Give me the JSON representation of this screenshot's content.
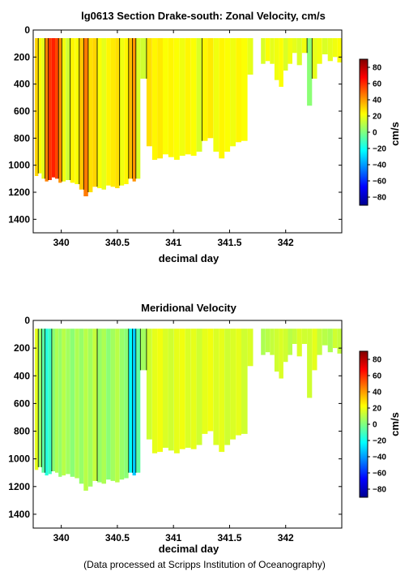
{
  "figure_title": "lg0613 Section Drake-south: Zonal Velocity, cm/s",
  "credit": "(Data processed at Scripps Institution of Oceanography)",
  "colors": {
    "colormap": [
      "#00008f",
      "#0000ff",
      "#0080ff",
      "#00ffff",
      "#80ff80",
      "#ffff00",
      "#ff8000",
      "#ff0000",
      "#800000"
    ],
    "contour": "#000000",
    "frame": "#000000"
  },
  "chart_data": [
    {
      "type": "heatmap",
      "title": "lg0613 Section Drake-south: Zonal Velocity, cm/s",
      "xlabel": "decimal day",
      "ylabel": "",
      "xlim": [
        339.75,
        342.5
      ],
      "ylim": [
        1500,
        0
      ],
      "xticks": [
        340,
        340.5,
        341,
        341.5,
        342
      ],
      "xtick_labels": [
        "340",
        "340.5",
        "341",
        "341.5",
        "342"
      ],
      "yticks": [
        0,
        200,
        400,
        600,
        800,
        1000,
        1200,
        1400
      ],
      "ytick_labels": [
        "0",
        "200",
        "400",
        "600",
        "800",
        "1000",
        "1200",
        "1400"
      ],
      "colorbar": {
        "label": "cm/s",
        "range": [
          -90,
          90
        ],
        "ticks": [
          80,
          60,
          40,
          20,
          0,
          -20,
          -40,
          -60,
          -80
        ],
        "tick_labels": [
          "80",
          "60",
          "40",
          "20",
          "0",
          "−20",
          "−40",
          "−60",
          "−80"
        ]
      },
      "columns": [
        {
          "x": 339.78,
          "depth": 1080,
          "v": 30
        },
        {
          "x": 339.81,
          "depth": 1060,
          "v": 22
        },
        {
          "x": 339.84,
          "depth": 1100,
          "v": 18
        },
        {
          "x": 339.87,
          "depth": 1120,
          "v": 45
        },
        {
          "x": 339.9,
          "depth": 1110,
          "v": 58
        },
        {
          "x": 339.93,
          "depth": 1090,
          "v": 62
        },
        {
          "x": 339.96,
          "depth": 1100,
          "v": 55
        },
        {
          "x": 339.99,
          "depth": 1130,
          "v": 42
        },
        {
          "x": 340.02,
          "depth": 1120,
          "v": 20
        },
        {
          "x": 340.06,
          "depth": 1110,
          "v": 14
        },
        {
          "x": 340.1,
          "depth": 1130,
          "v": 24
        },
        {
          "x": 340.14,
          "depth": 1140,
          "v": 22
        },
        {
          "x": 340.18,
          "depth": 1180,
          "v": 32
        },
        {
          "x": 340.22,
          "depth": 1230,
          "v": 46
        },
        {
          "x": 340.26,
          "depth": 1200,
          "v": 28
        },
        {
          "x": 340.3,
          "depth": 1160,
          "v": 30
        },
        {
          "x": 340.34,
          "depth": 1170,
          "v": 22
        },
        {
          "x": 340.38,
          "depth": 1180,
          "v": 18
        },
        {
          "x": 340.42,
          "depth": 1150,
          "v": 24
        },
        {
          "x": 340.46,
          "depth": 1160,
          "v": 26
        },
        {
          "x": 340.5,
          "depth": 1170,
          "v": 28
        },
        {
          "x": 340.54,
          "depth": 1150,
          "v": 20
        },
        {
          "x": 340.58,
          "depth": 1140,
          "v": 24
        },
        {
          "x": 340.62,
          "depth": 1100,
          "v": 34
        },
        {
          "x": 340.65,
          "depth": 1120,
          "v": 42
        },
        {
          "x": 340.68,
          "depth": 1100,
          "v": 16
        },
        {
          "x": 340.73,
          "depth": 360,
          "v": 14
        },
        {
          "x": 340.79,
          "depth": 860,
          "v": 28
        },
        {
          "x": 340.83,
          "depth": 960,
          "v": 24
        },
        {
          "x": 340.88,
          "depth": 950,
          "v": 26
        },
        {
          "x": 340.93,
          "depth": 920,
          "v": 22
        },
        {
          "x": 340.98,
          "depth": 940,
          "v": 24
        },
        {
          "x": 341.03,
          "depth": 960,
          "v": 22
        },
        {
          "x": 341.08,
          "depth": 930,
          "v": 20
        },
        {
          "x": 341.13,
          "depth": 920,
          "v": 24
        },
        {
          "x": 341.18,
          "depth": 930,
          "v": 22
        },
        {
          "x": 341.23,
          "depth": 900,
          "v": 16
        },
        {
          "x": 341.28,
          "depth": 820,
          "v": 24
        },
        {
          "x": 341.33,
          "depth": 800,
          "v": 26
        },
        {
          "x": 341.38,
          "depth": 900,
          "v": 20
        },
        {
          "x": 341.43,
          "depth": 950,
          "v": 24
        },
        {
          "x": 341.48,
          "depth": 900,
          "v": 22
        },
        {
          "x": 341.53,
          "depth": 860,
          "v": 20
        },
        {
          "x": 341.58,
          "depth": 830,
          "v": 24
        },
        {
          "x": 341.63,
          "depth": 820,
          "v": 22
        },
        {
          "x": 341.69,
          "depth": 330,
          "v": 18
        },
        {
          "x": 341.8,
          "depth": 250,
          "v": 16
        },
        {
          "x": 341.84,
          "depth": 230,
          "v": 22
        },
        {
          "x": 341.88,
          "depth": 250,
          "v": 18
        },
        {
          "x": 341.92,
          "depth": 370,
          "v": 20
        },
        {
          "x": 341.96,
          "depth": 420,
          "v": 22
        },
        {
          "x": 342.0,
          "depth": 300,
          "v": 16
        },
        {
          "x": 342.04,
          "depth": 250,
          "v": 20
        },
        {
          "x": 342.08,
          "depth": 170,
          "v": 18
        },
        {
          "x": 342.12,
          "depth": 260,
          "v": 16
        },
        {
          "x": 342.17,
          "depth": 170,
          "v": 20
        },
        {
          "x": 342.21,
          "depth": 560,
          "v": 2
        },
        {
          "x": 342.26,
          "depth": 360,
          "v": 18
        },
        {
          "x": 342.3,
          "depth": 250,
          "v": 20
        },
        {
          "x": 342.35,
          "depth": 180,
          "v": 16
        },
        {
          "x": 342.4,
          "depth": 230,
          "v": 18
        },
        {
          "x": 342.44,
          "depth": 200,
          "v": 20
        },
        {
          "x": 342.48,
          "depth": 240,
          "v": 22
        }
      ]
    },
    {
      "type": "heatmap",
      "title": "Meridional Velocity",
      "xlabel": "decimal day",
      "ylabel": "",
      "xlim": [
        339.75,
        342.5
      ],
      "ylim": [
        1500,
        0
      ],
      "xticks": [
        340,
        340.5,
        341,
        341.5,
        342
      ],
      "xtick_labels": [
        "340",
        "340.5",
        "341",
        "341.5",
        "342"
      ],
      "yticks": [
        0,
        200,
        400,
        600,
        800,
        1000,
        1200,
        1400
      ],
      "ytick_labels": [
        "0",
        "200",
        "400",
        "600",
        "800",
        "1000",
        "1200",
        "1400"
      ],
      "colorbar": {
        "label": "cm/s",
        "range": [
          -90,
          90
        ],
        "ticks": [
          80,
          60,
          40,
          20,
          0,
          -20,
          -40,
          -60,
          -80
        ],
        "tick_labels": [
          "80",
          "60",
          "40",
          "20",
          "0",
          "−20",
          "−40",
          "−60",
          "−80"
        ]
      },
      "columns": [
        {
          "x": 339.78,
          "depth": 1080,
          "v": 18
        },
        {
          "x": 339.81,
          "depth": 1060,
          "v": 4
        },
        {
          "x": 339.84,
          "depth": 1100,
          "v": -6
        },
        {
          "x": 339.87,
          "depth": 1120,
          "v": -16
        },
        {
          "x": 339.9,
          "depth": 1110,
          "v": -12
        },
        {
          "x": 339.93,
          "depth": 1090,
          "v": 2
        },
        {
          "x": 339.96,
          "depth": 1100,
          "v": 8
        },
        {
          "x": 339.99,
          "depth": 1130,
          "v": 4
        },
        {
          "x": 340.02,
          "depth": 1120,
          "v": 10
        },
        {
          "x": 340.06,
          "depth": 1110,
          "v": 6
        },
        {
          "x": 340.1,
          "depth": 1130,
          "v": 2
        },
        {
          "x": 340.14,
          "depth": 1140,
          "v": 8
        },
        {
          "x": 340.18,
          "depth": 1180,
          "v": 4
        },
        {
          "x": 340.22,
          "depth": 1230,
          "v": 10
        },
        {
          "x": 340.26,
          "depth": 1200,
          "v": 6
        },
        {
          "x": 340.3,
          "depth": 1160,
          "v": 12
        },
        {
          "x": 340.34,
          "depth": 1170,
          "v": 4
        },
        {
          "x": 340.38,
          "depth": 1180,
          "v": 8
        },
        {
          "x": 340.42,
          "depth": 1150,
          "v": 2
        },
        {
          "x": 340.46,
          "depth": 1160,
          "v": 6
        },
        {
          "x": 340.5,
          "depth": 1170,
          "v": 10
        },
        {
          "x": 340.54,
          "depth": 1150,
          "v": 4
        },
        {
          "x": 340.58,
          "depth": 1140,
          "v": 2
        },
        {
          "x": 340.62,
          "depth": 1100,
          "v": -22
        },
        {
          "x": 340.65,
          "depth": 1120,
          "v": -32
        },
        {
          "x": 340.68,
          "depth": 1100,
          "v": -6
        },
        {
          "x": 340.73,
          "depth": 360,
          "v": 6
        },
        {
          "x": 340.79,
          "depth": 860,
          "v": 14
        },
        {
          "x": 340.83,
          "depth": 960,
          "v": 18
        },
        {
          "x": 340.88,
          "depth": 950,
          "v": 20
        },
        {
          "x": 340.93,
          "depth": 920,
          "v": 16
        },
        {
          "x": 340.98,
          "depth": 940,
          "v": 14
        },
        {
          "x": 341.03,
          "depth": 960,
          "v": 18
        },
        {
          "x": 341.08,
          "depth": 930,
          "v": 20
        },
        {
          "x": 341.13,
          "depth": 920,
          "v": 16
        },
        {
          "x": 341.18,
          "depth": 930,
          "v": 18
        },
        {
          "x": 341.23,
          "depth": 900,
          "v": 14
        },
        {
          "x": 341.28,
          "depth": 820,
          "v": 18
        },
        {
          "x": 341.33,
          "depth": 800,
          "v": 20
        },
        {
          "x": 341.38,
          "depth": 900,
          "v": 16
        },
        {
          "x": 341.43,
          "depth": 950,
          "v": 18
        },
        {
          "x": 341.48,
          "depth": 900,
          "v": 14
        },
        {
          "x": 341.53,
          "depth": 860,
          "v": 16
        },
        {
          "x": 341.58,
          "depth": 830,
          "v": 18
        },
        {
          "x": 341.63,
          "depth": 820,
          "v": 14
        },
        {
          "x": 341.69,
          "depth": 330,
          "v": 16
        },
        {
          "x": 341.8,
          "depth": 250,
          "v": 8
        },
        {
          "x": 341.84,
          "depth": 230,
          "v": 10
        },
        {
          "x": 341.88,
          "depth": 250,
          "v": 12
        },
        {
          "x": 341.92,
          "depth": 370,
          "v": 14
        },
        {
          "x": 341.96,
          "depth": 420,
          "v": 16
        },
        {
          "x": 342.0,
          "depth": 300,
          "v": 14
        },
        {
          "x": 342.04,
          "depth": 250,
          "v": 10
        },
        {
          "x": 342.08,
          "depth": 170,
          "v": 12
        },
        {
          "x": 342.12,
          "depth": 260,
          "v": 16
        },
        {
          "x": 342.17,
          "depth": 170,
          "v": 14
        },
        {
          "x": 342.21,
          "depth": 560,
          "v": 14
        },
        {
          "x": 342.26,
          "depth": 360,
          "v": 18
        },
        {
          "x": 342.3,
          "depth": 250,
          "v": 12
        },
        {
          "x": 342.35,
          "depth": 180,
          "v": 10
        },
        {
          "x": 342.4,
          "depth": 230,
          "v": 8
        },
        {
          "x": 342.44,
          "depth": 200,
          "v": 14
        },
        {
          "x": 342.48,
          "depth": 240,
          "v": 12
        }
      ]
    }
  ]
}
